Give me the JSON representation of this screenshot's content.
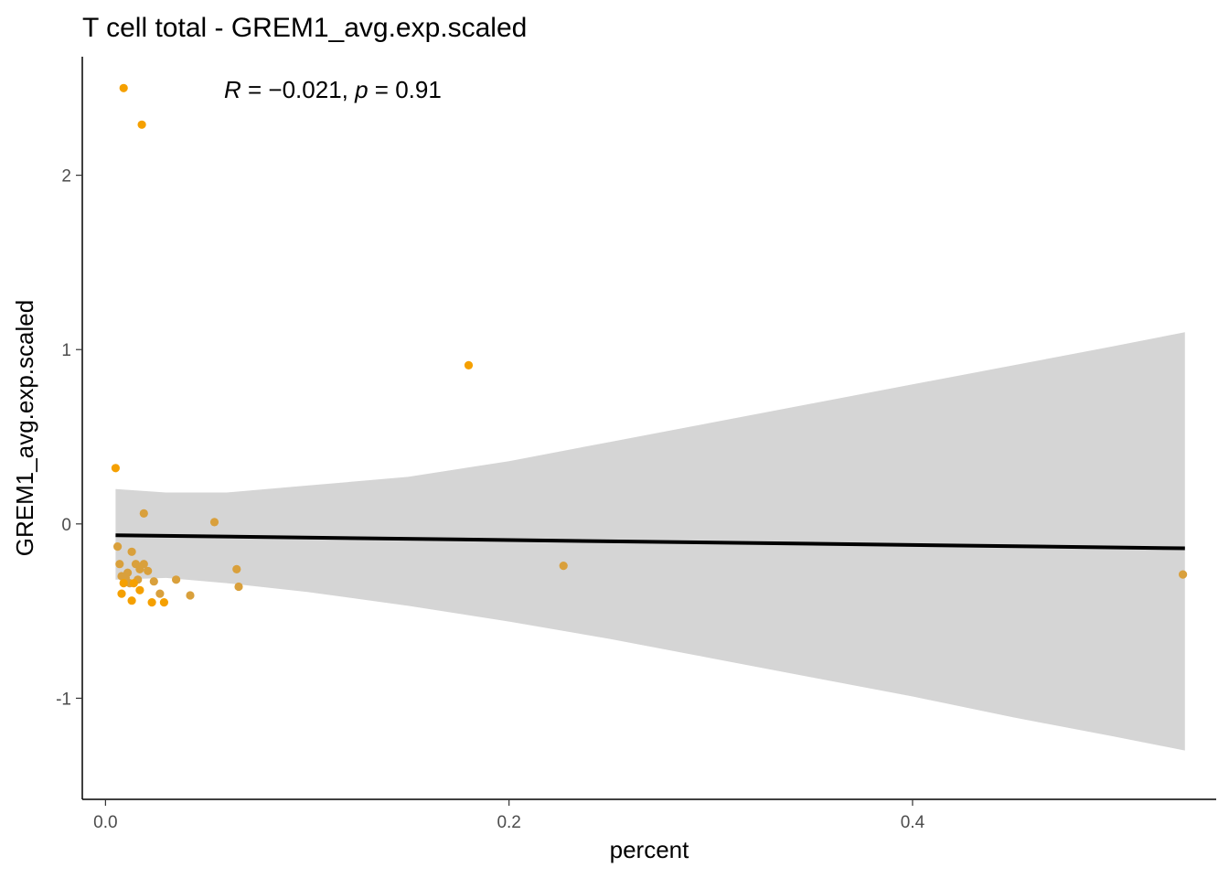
{
  "chart_data": {
    "type": "scatter",
    "title": "T cell total - GREM1_avg.exp.scaled",
    "xlabel": "percent",
    "ylabel": "GREM1_avg.exp.scaled",
    "xlim": [
      -0.0115,
      0.5505
    ],
    "ylim": [
      -1.58,
      2.68
    ],
    "x_ticks": [
      0.0,
      0.2,
      0.4
    ],
    "x_tick_labels": [
      "0.0",
      "0.2",
      "0.4"
    ],
    "y_ticks": [
      -1,
      0,
      1,
      2
    ],
    "y_tick_labels": [
      "-1",
      "0",
      "1",
      "2"
    ],
    "grid": false,
    "legend": "none",
    "annotation": {
      "r_symbol": "R",
      "r_value": " = −0.021, ",
      "p_symbol": "p",
      "p_value": " = 0.91"
    },
    "point_colors": {
      "light": "#F5A000",
      "dark": "#D9A03C"
    },
    "fit_line": {
      "color": "#000000",
      "x": [
        0.005,
        0.535
      ],
      "y": [
        -0.065,
        -0.14
      ]
    },
    "confidence_band": {
      "color": "#D5D5D5",
      "x": [
        0.005,
        0.03,
        0.06,
        0.1,
        0.15,
        0.2,
        0.25,
        0.3,
        0.35,
        0.4,
        0.45,
        0.5,
        0.535
      ],
      "lower": [
        -0.32,
        -0.31,
        -0.34,
        -0.39,
        -0.47,
        -0.56,
        -0.66,
        -0.77,
        -0.88,
        -0.99,
        -1.11,
        -1.22,
        -1.3
      ],
      "upper": [
        0.2,
        0.18,
        0.18,
        0.22,
        0.27,
        0.36,
        0.47,
        0.58,
        0.69,
        0.8,
        0.91,
        1.02,
        1.1
      ]
    },
    "points": [
      {
        "x": 0.009,
        "y": 2.5,
        "shade": "light"
      },
      {
        "x": 0.018,
        "y": 2.29,
        "shade": "light"
      },
      {
        "x": 0.18,
        "y": 0.91,
        "shade": "light"
      },
      {
        "x": 0.005,
        "y": 0.32,
        "shade": "light"
      },
      {
        "x": 0.019,
        "y": 0.06,
        "shade": "dark"
      },
      {
        "x": 0.054,
        "y": 0.01,
        "shade": "dark"
      },
      {
        "x": 0.006,
        "y": -0.13,
        "shade": "dark"
      },
      {
        "x": 0.013,
        "y": -0.16,
        "shade": "dark"
      },
      {
        "x": 0.007,
        "y": -0.23,
        "shade": "dark"
      },
      {
        "x": 0.015,
        "y": -0.23,
        "shade": "dark"
      },
      {
        "x": 0.019,
        "y": -0.23,
        "shade": "dark"
      },
      {
        "x": 0.227,
        "y": -0.24,
        "shade": "dark"
      },
      {
        "x": 0.017,
        "y": -0.26,
        "shade": "dark"
      },
      {
        "x": 0.065,
        "y": -0.26,
        "shade": "dark"
      },
      {
        "x": 0.021,
        "y": -0.27,
        "shade": "dark"
      },
      {
        "x": 0.011,
        "y": -0.28,
        "shade": "dark"
      },
      {
        "x": 0.008,
        "y": -0.3,
        "shade": "dark"
      },
      {
        "x": 0.534,
        "y": -0.29,
        "shade": "dark"
      },
      {
        "x": 0.01,
        "y": -0.31,
        "shade": "dark"
      },
      {
        "x": 0.016,
        "y": -0.32,
        "shade": "dark"
      },
      {
        "x": 0.035,
        "y": -0.32,
        "shade": "dark"
      },
      {
        "x": 0.012,
        "y": -0.34,
        "shade": "dark"
      },
      {
        "x": 0.024,
        "y": -0.33,
        "shade": "dark"
      },
      {
        "x": 0.014,
        "y": -0.34,
        "shade": "light"
      },
      {
        "x": 0.009,
        "y": -0.34,
        "shade": "light"
      },
      {
        "x": 0.066,
        "y": -0.36,
        "shade": "dark"
      },
      {
        "x": 0.017,
        "y": -0.38,
        "shade": "light"
      },
      {
        "x": 0.008,
        "y": -0.4,
        "shade": "light"
      },
      {
        "x": 0.027,
        "y": -0.4,
        "shade": "dark"
      },
      {
        "x": 0.042,
        "y": -0.41,
        "shade": "dark"
      },
      {
        "x": 0.013,
        "y": -0.44,
        "shade": "light"
      },
      {
        "x": 0.023,
        "y": -0.45,
        "shade": "light"
      },
      {
        "x": 0.029,
        "y": -0.45,
        "shade": "light"
      }
    ]
  }
}
